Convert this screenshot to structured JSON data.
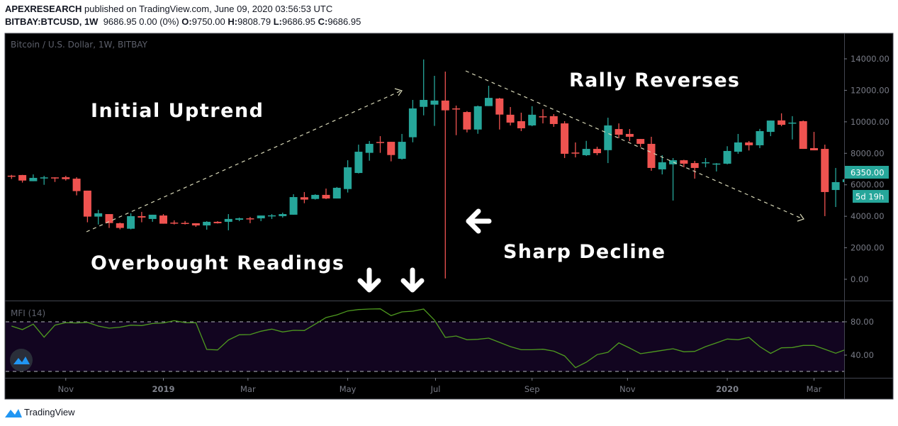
{
  "header": {
    "author": "APEXRESEARCH",
    "published": "published on TradingView.com, June 09, 2020 03:56:53 UTC",
    "symbol": "BITBAY:BTCUSD, 1W",
    "change": "9686.95 0.00 (0%)",
    "open_label": "O:",
    "open": "9750.00",
    "high_label": "H:",
    "high": "9808.79",
    "low_label": "L:",
    "low": "9686.95",
    "close_label": "C:",
    "close": "9686.95"
  },
  "chart_title": "Bitcoin / U.S. Dollar, 1W, BITBAY",
  "indicator_label": "MFI (14)",
  "last_price_label": "6350.00",
  "countdown_label": "5d 19h",
  "footer_brand": "TradingView",
  "colors": {
    "up": "#26a69a",
    "down": "#ef5350",
    "mfi": "#4e9a1f",
    "mfi_band": "#120520",
    "background": "#000000",
    "annotation": "#ffffff",
    "trendline": "#d8d8b8"
  },
  "annotations": {
    "initial_uptrend": "Initial Uptrend",
    "rally_reverses": "Rally Reverses",
    "overbought": "Overbought Readings",
    "sharp_decline": "Sharp Decline"
  },
  "chart_data": [
    {
      "type": "candlestick",
      "title": "Bitcoin / U.S. Dollar, 1W, BITBAY",
      "interval": "1W",
      "ylim": [
        0,
        14000
      ],
      "y_ticks": [
        "14000.00",
        "12000.00",
        "10000.00",
        "8000.00",
        "6000.00",
        "4000.00",
        "2000.00",
        "0.00"
      ],
      "y_tick_values": [
        14000,
        12000,
        10000,
        8000,
        6000,
        4000,
        2000,
        0
      ],
      "x_ticks": [
        {
          "label": "Nov",
          "week": 5
        },
        {
          "label": "2019",
          "week": 14
        },
        {
          "label": "Mar",
          "week": 21.8
        },
        {
          "label": "May",
          "week": 31
        },
        {
          "label": "Jul",
          "week": 39.1
        },
        {
          "label": "Sep",
          "week": 48
        },
        {
          "label": "Nov",
          "week": 56.8
        },
        {
          "label": "2020",
          "week": 66
        },
        {
          "label": "Mar",
          "week": 74
        }
      ],
      "ohlc_fields": [
        "open",
        "high",
        "low",
        "close"
      ],
      "candles": [
        [
          6580,
          6630,
          6370,
          6510
        ],
        [
          6620,
          6630,
          6140,
          6270
        ],
        [
          6230,
          6660,
          6230,
          6440
        ],
        [
          6450,
          6570,
          6000,
          6470
        ],
        [
          6470,
          6480,
          6180,
          6450
        ],
        [
          6480,
          6570,
          6270,
          6360
        ],
        [
          6390,
          6480,
          5330,
          5600
        ],
        [
          5630,
          5630,
          3620,
          3980
        ],
        [
          3980,
          4410,
          3480,
          4190
        ],
        [
          4140,
          4140,
          3260,
          3570
        ],
        [
          3560,
          3600,
          3170,
          3260
        ],
        [
          3210,
          4190,
          3170,
          4010
        ],
        [
          4010,
          4280,
          3620,
          3920
        ],
        [
          3830,
          4100,
          3650,
          4100
        ],
        [
          4050,
          4140,
          3530,
          3530
        ],
        [
          3600,
          3740,
          3480,
          3580
        ],
        [
          3580,
          3700,
          3480,
          3570
        ],
        [
          3560,
          3560,
          3330,
          3420
        ],
        [
          3420,
          3690,
          3150,
          3650
        ],
        [
          3650,
          3690,
          3540,
          3560
        ],
        [
          3650,
          4140,
          3110,
          3830
        ],
        [
          3780,
          3920,
          3690,
          3870
        ],
        [
          3870,
          3960,
          3560,
          3820
        ],
        [
          3870,
          4050,
          3690,
          4050
        ],
        [
          4010,
          4140,
          3830,
          4060
        ],
        [
          4010,
          4230,
          3920,
          4140
        ],
        [
          4100,
          5400,
          4100,
          5220
        ],
        [
          5210,
          5540,
          4830,
          5060
        ],
        [
          5100,
          5400,
          5060,
          5360
        ],
        [
          5360,
          5760,
          5090,
          5130
        ],
        [
          5130,
          5860,
          5130,
          5810
        ],
        [
          5730,
          7560,
          5510,
          7110
        ],
        [
          6750,
          8550,
          6720,
          8100
        ],
        [
          8030,
          8780,
          7530,
          8600
        ],
        [
          8720,
          9090,
          8030,
          8680
        ],
        [
          8730,
          8730,
          7490,
          7890
        ],
        [
          7650,
          9230,
          7600,
          8730
        ],
        [
          9020,
          11390,
          8700,
          10850
        ],
        [
          10950,
          13960,
          10410,
          11390
        ],
        [
          11090,
          12920,
          9740,
          11350
        ],
        [
          11350,
          13190,
          50,
          10730
        ],
        [
          10850,
          11030,
          9150,
          10800
        ],
        [
          10620,
          10680,
          9330,
          9510
        ],
        [
          9510,
          11030,
          9240,
          10990
        ],
        [
          11000,
          12290,
          11000,
          11520
        ],
        [
          11480,
          11520,
          9510,
          10460
        ],
        [
          10450,
          10940,
          9770,
          9950
        ],
        [
          10040,
          10580,
          9410,
          9590
        ],
        [
          9770,
          10990,
          9720,
          10450
        ],
        [
          10350,
          10800,
          9900,
          10300
        ],
        [
          10360,
          10490,
          9680,
          9860
        ],
        [
          9900,
          10040,
          7700,
          7970
        ],
        [
          8050,
          8690,
          7740,
          7980
        ],
        [
          7880,
          8790,
          7830,
          8280
        ],
        [
          8280,
          8420,
          7880,
          8010
        ],
        [
          8200,
          10260,
          7380,
          9770
        ],
        [
          9540,
          9900,
          8960,
          9180
        ],
        [
          9230,
          9540,
          8770,
          9050
        ],
        [
          8910,
          8910,
          8400,
          8600
        ],
        [
          8600,
          9050,
          6890,
          7070
        ],
        [
          6980,
          7880,
          6660,
          7430
        ],
        [
          7300,
          7700,
          5000,
          7560
        ],
        [
          7560,
          7590,
          7110,
          7340
        ],
        [
          7380,
          7520,
          6390,
          7070
        ],
        [
          7400,
          7700,
          7110,
          7430
        ],
        [
          7300,
          7380,
          6850,
          7350
        ],
        [
          7340,
          8450,
          7300,
          8150
        ],
        [
          8100,
          9230,
          7970,
          8690
        ],
        [
          8690,
          8780,
          8180,
          8510
        ],
        [
          8510,
          9550,
          8330,
          9410
        ],
        [
          9360,
          10080,
          9090,
          10080
        ],
        [
          10090,
          10540,
          9720,
          9810
        ],
        [
          9900,
          10360,
          8880,
          9950
        ],
        [
          10040,
          10085,
          8280,
          8280
        ],
        [
          8330,
          9360,
          8190,
          8190
        ],
        [
          8280,
          8550,
          4010,
          5540
        ],
        [
          5670,
          7070,
          4590,
          6170
        ],
        [
          6170,
          6400,
          6100,
          6350
        ]
      ],
      "last_price": 6350
    },
    {
      "type": "line",
      "title": "MFI (14)",
      "ylim": [
        20,
        105
      ],
      "y_ticks": [
        "80.00",
        "40.00"
      ],
      "y_tick_values": [
        80,
        40
      ],
      "bands": [
        80,
        20
      ],
      "values": [
        74.9,
        70.6,
        77.2,
        61.5,
        76,
        79.1,
        78.6,
        79.4,
        74.9,
        72.3,
        73.5,
        76,
        75.5,
        78,
        78.6,
        81.4,
        79.1,
        78.9,
        46.8,
        46.2,
        58.1,
        64.4,
        64.7,
        68.7,
        71.2,
        67.8,
        69.8,
        69.5,
        77.2,
        85.1,
        88.3,
        93,
        94.7,
        95.3,
        95.6,
        87.4,
        91.9,
        92.8,
        95.3,
        82,
        61.3,
        63,
        58.5,
        59,
        60.4,
        55.3,
        50.2,
        46.5,
        46.5,
        47.1,
        44.8,
        39.1,
        24.9,
        31.5,
        40.6,
        43.4,
        54.7,
        48.5,
        41.7,
        43.7,
        45.7,
        47.7,
        44,
        44.5,
        50.2,
        54.7,
        59.3,
        58.5,
        61.3,
        50.2,
        42,
        48.8,
        49.1,
        51.7,
        51.7,
        47.1,
        42.3,
        47.1
      ]
    }
  ]
}
